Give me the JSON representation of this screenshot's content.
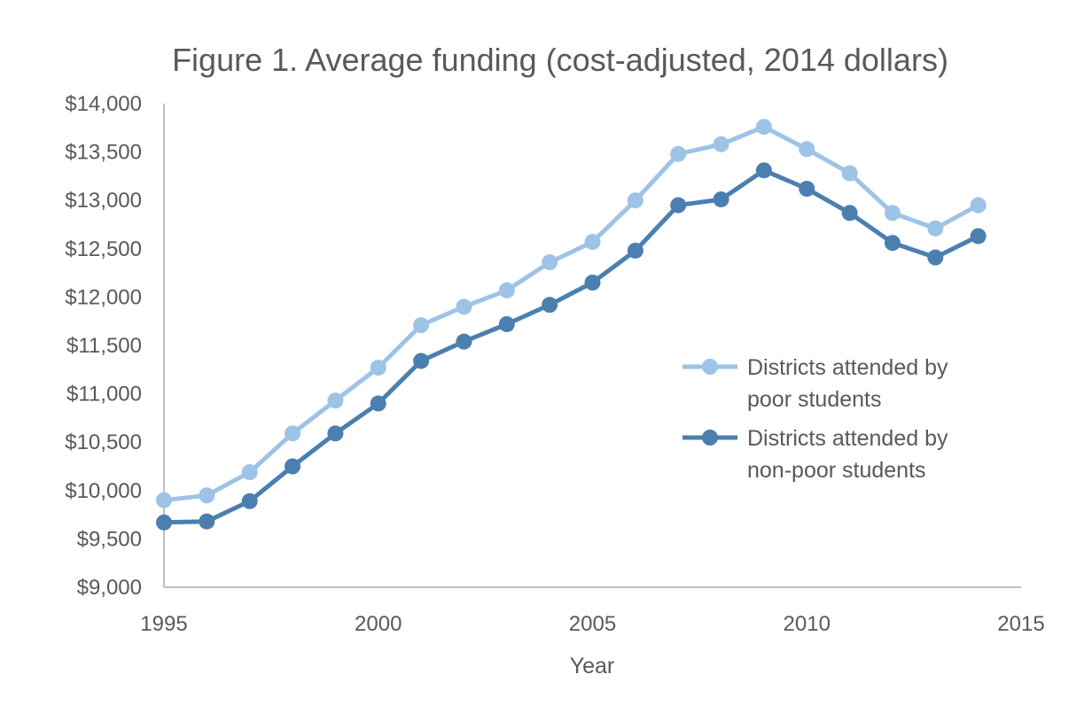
{
  "chart_data": {
    "type": "line",
    "title": "Figure 1. Average funding (cost-adjusted, 2014 dollars)",
    "xlabel": "Year",
    "ylabel": "",
    "xlim": [
      1995,
      2015
    ],
    "ylim": [
      9000,
      14000
    ],
    "x_ticks": [
      1995,
      2000,
      2005,
      2010,
      2015
    ],
    "x_tick_labels": [
      "1995",
      "2000",
      "2005",
      "2010",
      "2015"
    ],
    "y_ticks": [
      9000,
      9500,
      10000,
      10500,
      11000,
      11500,
      12000,
      12500,
      13000,
      13500,
      14000
    ],
    "y_tick_labels": [
      "$9,000",
      "$9,500",
      "$10,000",
      "$10,500",
      "$11,000",
      "$11,500",
      "$12,000",
      "$12,500",
      "$13,000",
      "$13,500",
      "$14,000"
    ],
    "grid": false,
    "legend_position": "right",
    "x": [
      1995,
      1996,
      1997,
      1998,
      1999,
      2000,
      2001,
      2002,
      2003,
      2004,
      2005,
      2006,
      2007,
      2008,
      2009,
      2010,
      2011,
      2012,
      2013,
      2014
    ],
    "series": [
      {
        "name": "Districts attended by poor students",
        "legend_lines": [
          "Districts attended by",
          "poor students"
        ],
        "color": "#9dc3e6",
        "values": [
          9900,
          9950,
          10190,
          10590,
          10930,
          11270,
          11710,
          11900,
          12070,
          12360,
          12570,
          13000,
          13480,
          13580,
          13760,
          13530,
          13280,
          12870,
          12710,
          12950
        ]
      },
      {
        "name": "Districts attended by non-poor students",
        "legend_lines": [
          "Districts attended by",
          "non-poor students"
        ],
        "color": "#4a7fb0",
        "values": [
          9670,
          9680,
          9890,
          10250,
          10590,
          10900,
          11340,
          11540,
          11720,
          11920,
          12150,
          12480,
          12950,
          13010,
          13310,
          13120,
          12870,
          12560,
          12410,
          12630
        ]
      }
    ]
  }
}
